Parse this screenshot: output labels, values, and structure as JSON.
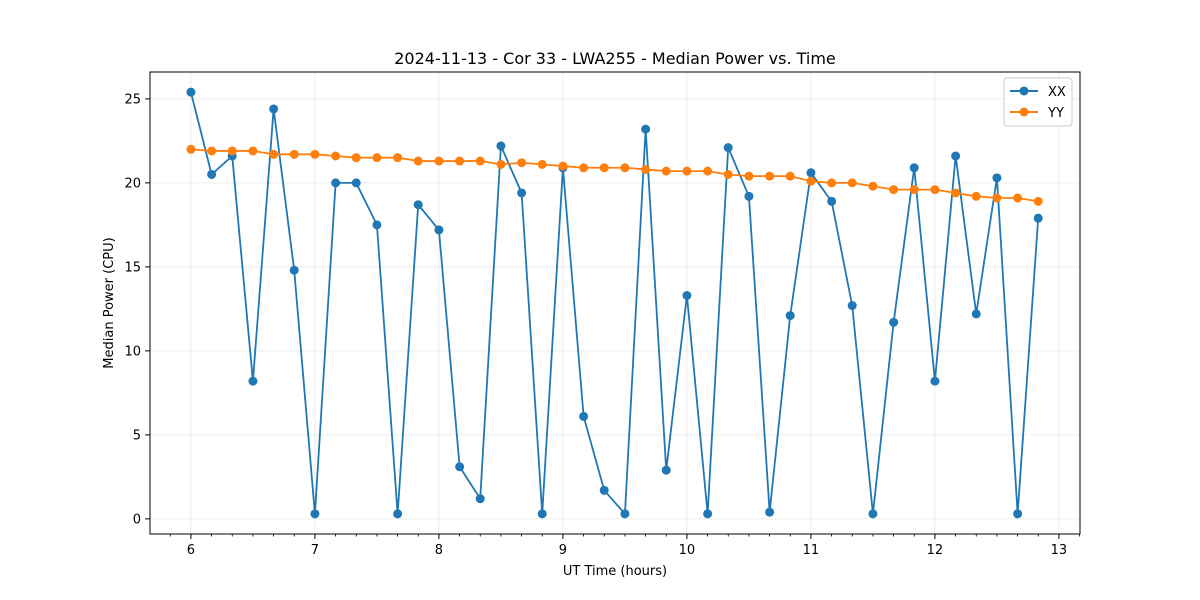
{
  "chart_data": {
    "type": "line",
    "title": "2024-11-13 - Cor 33 - LWA255 - Median Power vs. Time",
    "xlabel": "UT Time (hours)",
    "ylabel": "Median Power (CPU)",
    "xlim": [
      5.67,
      13.17
    ],
    "ylim": [
      -0.9,
      26.6
    ],
    "xticks": [
      6,
      7,
      8,
      9,
      10,
      11,
      12,
      13
    ],
    "xtick_labels": [
      "6",
      "7",
      "8",
      "9",
      "10",
      "11",
      "12",
      "13"
    ],
    "yticks": [
      0,
      5,
      10,
      15,
      20,
      25
    ],
    "ytick_labels": [
      "0",
      "5",
      "10",
      "15",
      "20",
      "25"
    ],
    "grid": true,
    "legend_position": "top-right",
    "x": [
      6.0,
      6.167,
      6.333,
      6.5,
      6.667,
      6.833,
      7.0,
      7.167,
      7.333,
      7.5,
      7.667,
      7.833,
      8.0,
      8.167,
      8.333,
      8.5,
      8.667,
      8.833,
      9.0,
      9.167,
      9.333,
      9.5,
      9.667,
      9.833,
      10.0,
      10.167,
      10.333,
      10.5,
      10.667,
      10.833,
      11.0,
      11.167,
      11.333,
      11.5,
      11.667,
      11.833,
      12.0,
      12.167,
      12.333,
      12.5,
      12.667,
      12.833
    ],
    "series": [
      {
        "name": "XX",
        "color": "#1f77b4",
        "values": [
          25.4,
          20.5,
          21.6,
          8.2,
          24.4,
          14.8,
          0.3,
          20.0,
          20.0,
          17.5,
          0.3,
          18.7,
          17.2,
          3.1,
          1.2,
          22.2,
          19.4,
          0.3,
          20.9,
          6.1,
          1.7,
          0.3,
          23.2,
          2.9,
          13.3,
          0.3,
          22.1,
          19.2,
          0.4,
          12.1,
          20.6,
          18.9,
          12.7,
          0.3,
          11.7,
          20.9,
          8.2,
          21.6,
          12.2,
          20.3,
          0.3,
          17.9
        ]
      },
      {
        "name": "YY",
        "color": "#ff7f0e",
        "values": [
          22.0,
          21.9,
          21.9,
          21.9,
          21.7,
          21.7,
          21.7,
          21.6,
          21.5,
          21.5,
          21.5,
          21.3,
          21.3,
          21.3,
          21.3,
          21.1,
          21.2,
          21.1,
          21.0,
          20.9,
          20.9,
          20.9,
          20.8,
          20.7,
          20.7,
          20.7,
          20.5,
          20.4,
          20.4,
          20.4,
          20.1,
          20.0,
          20.0,
          19.8,
          19.6,
          19.6,
          19.6,
          19.4,
          19.2,
          19.1,
          19.1,
          18.9
        ]
      }
    ]
  }
}
